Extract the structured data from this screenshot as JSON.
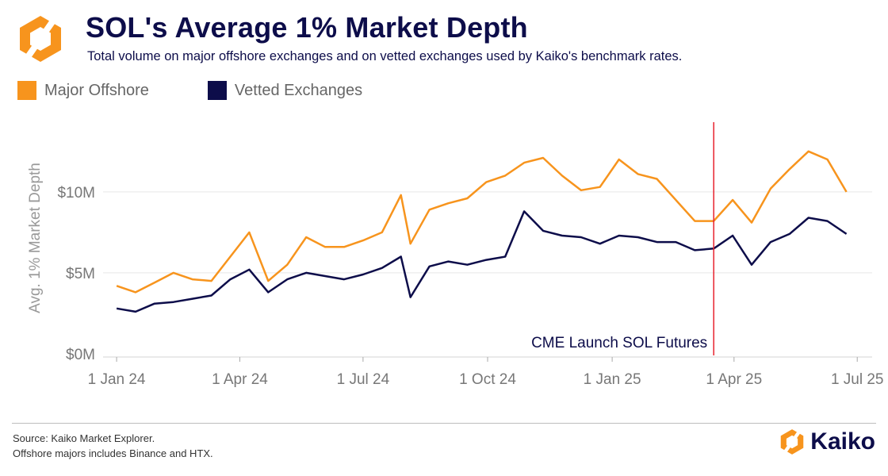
{
  "title": "SOL's Average 1% Market Depth",
  "subtitle": "Total volume on major offshore exchanges and on vetted exchanges used by Kaiko's benchmark rates.",
  "legend": [
    {
      "label": "Major Offshore",
      "color": "#f7941d"
    },
    {
      "label": "Vetted Exchanges",
      "color": "#0d0d4a"
    }
  ],
  "footer": {
    "source": "Source: Kaiko Market Explorer.",
    "note": "Offshore majors includes Binance and HTX.",
    "brand": "Kaiko"
  },
  "logo_icon": "kaiko-logo-icon",
  "chart_data": {
    "type": "line",
    "ylabel": "Avg. 1% Market Depth",
    "yticks": [
      {
        "value": 0,
        "label": "$0M"
      },
      {
        "value": 5,
        "label": "$5M"
      },
      {
        "value": 10,
        "label": "$10M"
      }
    ],
    "ylim": [
      0,
      14.5
    ],
    "xlim": [
      "2023-12-22",
      "2025-07-12"
    ],
    "xticks": [
      {
        "date": "2024-01-01",
        "label": "1 Jan 24"
      },
      {
        "date": "2024-04-01",
        "label": "1 Apr 24"
      },
      {
        "date": "2024-07-01",
        "label": "1 Jul 24"
      },
      {
        "date": "2024-10-01",
        "label": "1 Oct 24"
      },
      {
        "date": "2025-01-01",
        "label": "1 Jan 25"
      },
      {
        "date": "2025-04-01",
        "label": "1 Apr 25"
      },
      {
        "date": "2025-07-01",
        "label": "1 Jul 25"
      }
    ],
    "grid": true,
    "annotation": {
      "date": "2025-03-17",
      "label": "CME Launch SOL Futures",
      "color": "#e8212e"
    },
    "series": [
      {
        "name": "Major Offshore",
        "color": "#f7941d",
        "points": [
          [
            "2024-01-01",
            4.2
          ],
          [
            "2024-01-15",
            3.8
          ],
          [
            "2024-01-29",
            4.4
          ],
          [
            "2024-02-12",
            5.0
          ],
          [
            "2024-02-26",
            4.6
          ],
          [
            "2024-03-11",
            4.5
          ],
          [
            "2024-03-25",
            6.0
          ],
          [
            "2024-04-08",
            7.5
          ],
          [
            "2024-04-22",
            4.5
          ],
          [
            "2024-05-06",
            5.5
          ],
          [
            "2024-05-20",
            7.2
          ],
          [
            "2024-06-03",
            6.6
          ],
          [
            "2024-06-17",
            6.6
          ],
          [
            "2024-07-01",
            7.0
          ],
          [
            "2024-07-15",
            7.5
          ],
          [
            "2024-07-29",
            9.8
          ],
          [
            "2024-08-05",
            6.8
          ],
          [
            "2024-08-19",
            8.9
          ],
          [
            "2024-09-02",
            9.3
          ],
          [
            "2024-09-16",
            9.6
          ],
          [
            "2024-09-30",
            10.6
          ],
          [
            "2024-10-14",
            11.0
          ],
          [
            "2024-10-28",
            11.8
          ],
          [
            "2024-11-11",
            12.1
          ],
          [
            "2024-11-25",
            11.0
          ],
          [
            "2024-12-09",
            10.1
          ],
          [
            "2024-12-23",
            10.3
          ],
          [
            "2025-01-06",
            12.0
          ],
          [
            "2025-01-20",
            11.1
          ],
          [
            "2025-02-03",
            10.8
          ],
          [
            "2025-02-17",
            9.5
          ],
          [
            "2025-03-03",
            8.2
          ],
          [
            "2025-03-17",
            8.2
          ],
          [
            "2025-03-31",
            9.5
          ],
          [
            "2025-04-14",
            8.1
          ],
          [
            "2025-04-28",
            10.2
          ],
          [
            "2025-05-12",
            11.4
          ],
          [
            "2025-05-26",
            12.5
          ],
          [
            "2025-06-09",
            12.0
          ],
          [
            "2025-06-23",
            10.0
          ]
        ]
      },
      {
        "name": "Vetted Exchanges",
        "color": "#0d0d4a",
        "points": [
          [
            "2024-01-01",
            2.8
          ],
          [
            "2024-01-15",
            2.6
          ],
          [
            "2024-01-29",
            3.1
          ],
          [
            "2024-02-12",
            3.2
          ],
          [
            "2024-02-26",
            3.4
          ],
          [
            "2024-03-11",
            3.6
          ],
          [
            "2024-03-25",
            4.6
          ],
          [
            "2024-04-08",
            5.2
          ],
          [
            "2024-04-22",
            3.8
          ],
          [
            "2024-05-06",
            4.6
          ],
          [
            "2024-05-20",
            5.0
          ],
          [
            "2024-06-03",
            4.8
          ],
          [
            "2024-06-17",
            4.6
          ],
          [
            "2024-07-01",
            4.9
          ],
          [
            "2024-07-15",
            5.3
          ],
          [
            "2024-07-29",
            6.0
          ],
          [
            "2024-08-05",
            3.5
          ],
          [
            "2024-08-19",
            5.4
          ],
          [
            "2024-09-02",
            5.7
          ],
          [
            "2024-09-16",
            5.5
          ],
          [
            "2024-09-30",
            5.8
          ],
          [
            "2024-10-14",
            6.0
          ],
          [
            "2024-10-28",
            8.8
          ],
          [
            "2024-11-11",
            7.6
          ],
          [
            "2024-11-25",
            7.3
          ],
          [
            "2024-12-09",
            7.2
          ],
          [
            "2024-12-23",
            6.8
          ],
          [
            "2025-01-06",
            7.3
          ],
          [
            "2025-01-20",
            7.2
          ],
          [
            "2025-02-03",
            6.9
          ],
          [
            "2025-02-17",
            6.9
          ],
          [
            "2025-03-03",
            6.4
          ],
          [
            "2025-03-17",
            6.5
          ],
          [
            "2025-03-31",
            7.3
          ],
          [
            "2025-04-14",
            5.5
          ],
          [
            "2025-04-28",
            6.9
          ],
          [
            "2025-05-12",
            7.4
          ],
          [
            "2025-05-26",
            8.4
          ],
          [
            "2025-06-09",
            8.2
          ],
          [
            "2025-06-23",
            7.4
          ]
        ]
      }
    ]
  }
}
